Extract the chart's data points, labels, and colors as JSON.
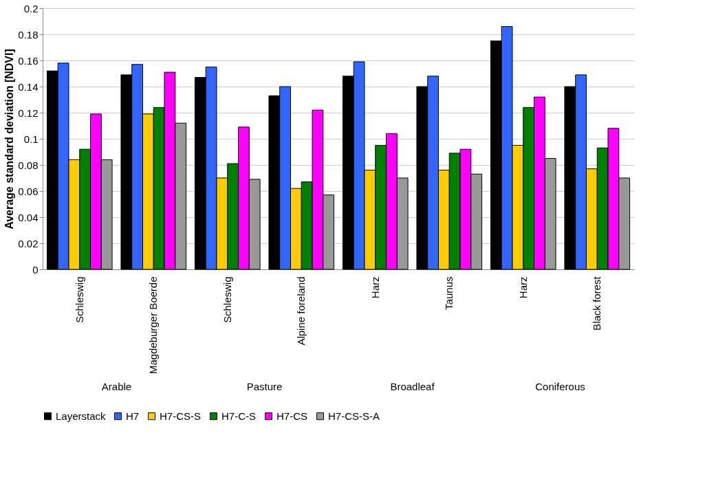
{
  "chart_data": {
    "type": "bar",
    "ylabel": "Average standard deviation [NDVI]",
    "categories": [
      "Schleswig",
      "Magdeburger Boerde",
      "Schleswig",
      "Alpine foreland",
      "Harz",
      "Taunus",
      "Harz",
      "Black forest"
    ],
    "annotations": [
      "Arable",
      "Pasture",
      "Broadleaf",
      "Coniferous"
    ],
    "series": [
      {
        "name": "Layerstack",
        "color": "#000000",
        "values": [
          0.152,
          0.149,
          0.147,
          0.133,
          0.148,
          0.14,
          0.175,
          0.14
        ]
      },
      {
        "name": "H7",
        "color": "#3366ff",
        "values": [
          0.158,
          0.157,
          0.155,
          0.14,
          0.159,
          0.148,
          0.186,
          0.149
        ]
      },
      {
        "name": "H7-CS-S",
        "color": "#ffcc00",
        "values": [
          0.084,
          0.119,
          0.07,
          0.062,
          0.076,
          0.076,
          0.095,
          0.077
        ]
      },
      {
        "name": "H7-C-S",
        "color": "#008000",
        "values": [
          0.092,
          0.124,
          0.081,
          0.067,
          0.095,
          0.089,
          0.124,
          0.093
        ]
      },
      {
        "name": "H7-CS",
        "color": "#ff00ff",
        "values": [
          0.119,
          0.151,
          0.109,
          0.122,
          0.104,
          0.092,
          0.132,
          0.108
        ]
      },
      {
        "name": "H7-CS-S-A",
        "color": "#999999",
        "values": [
          0.084,
          0.112,
          0.069,
          0.057,
          0.07,
          0.073,
          0.085,
          0.07
        ]
      }
    ],
    "ylim": [
      0,
      0.2
    ],
    "yticks": [
      0,
      0.02,
      0.04,
      0.06,
      0.08,
      0.1,
      0.12,
      0.14,
      0.16,
      0.18,
      0.2
    ],
    "grid": "y",
    "legend": "bottom"
  }
}
